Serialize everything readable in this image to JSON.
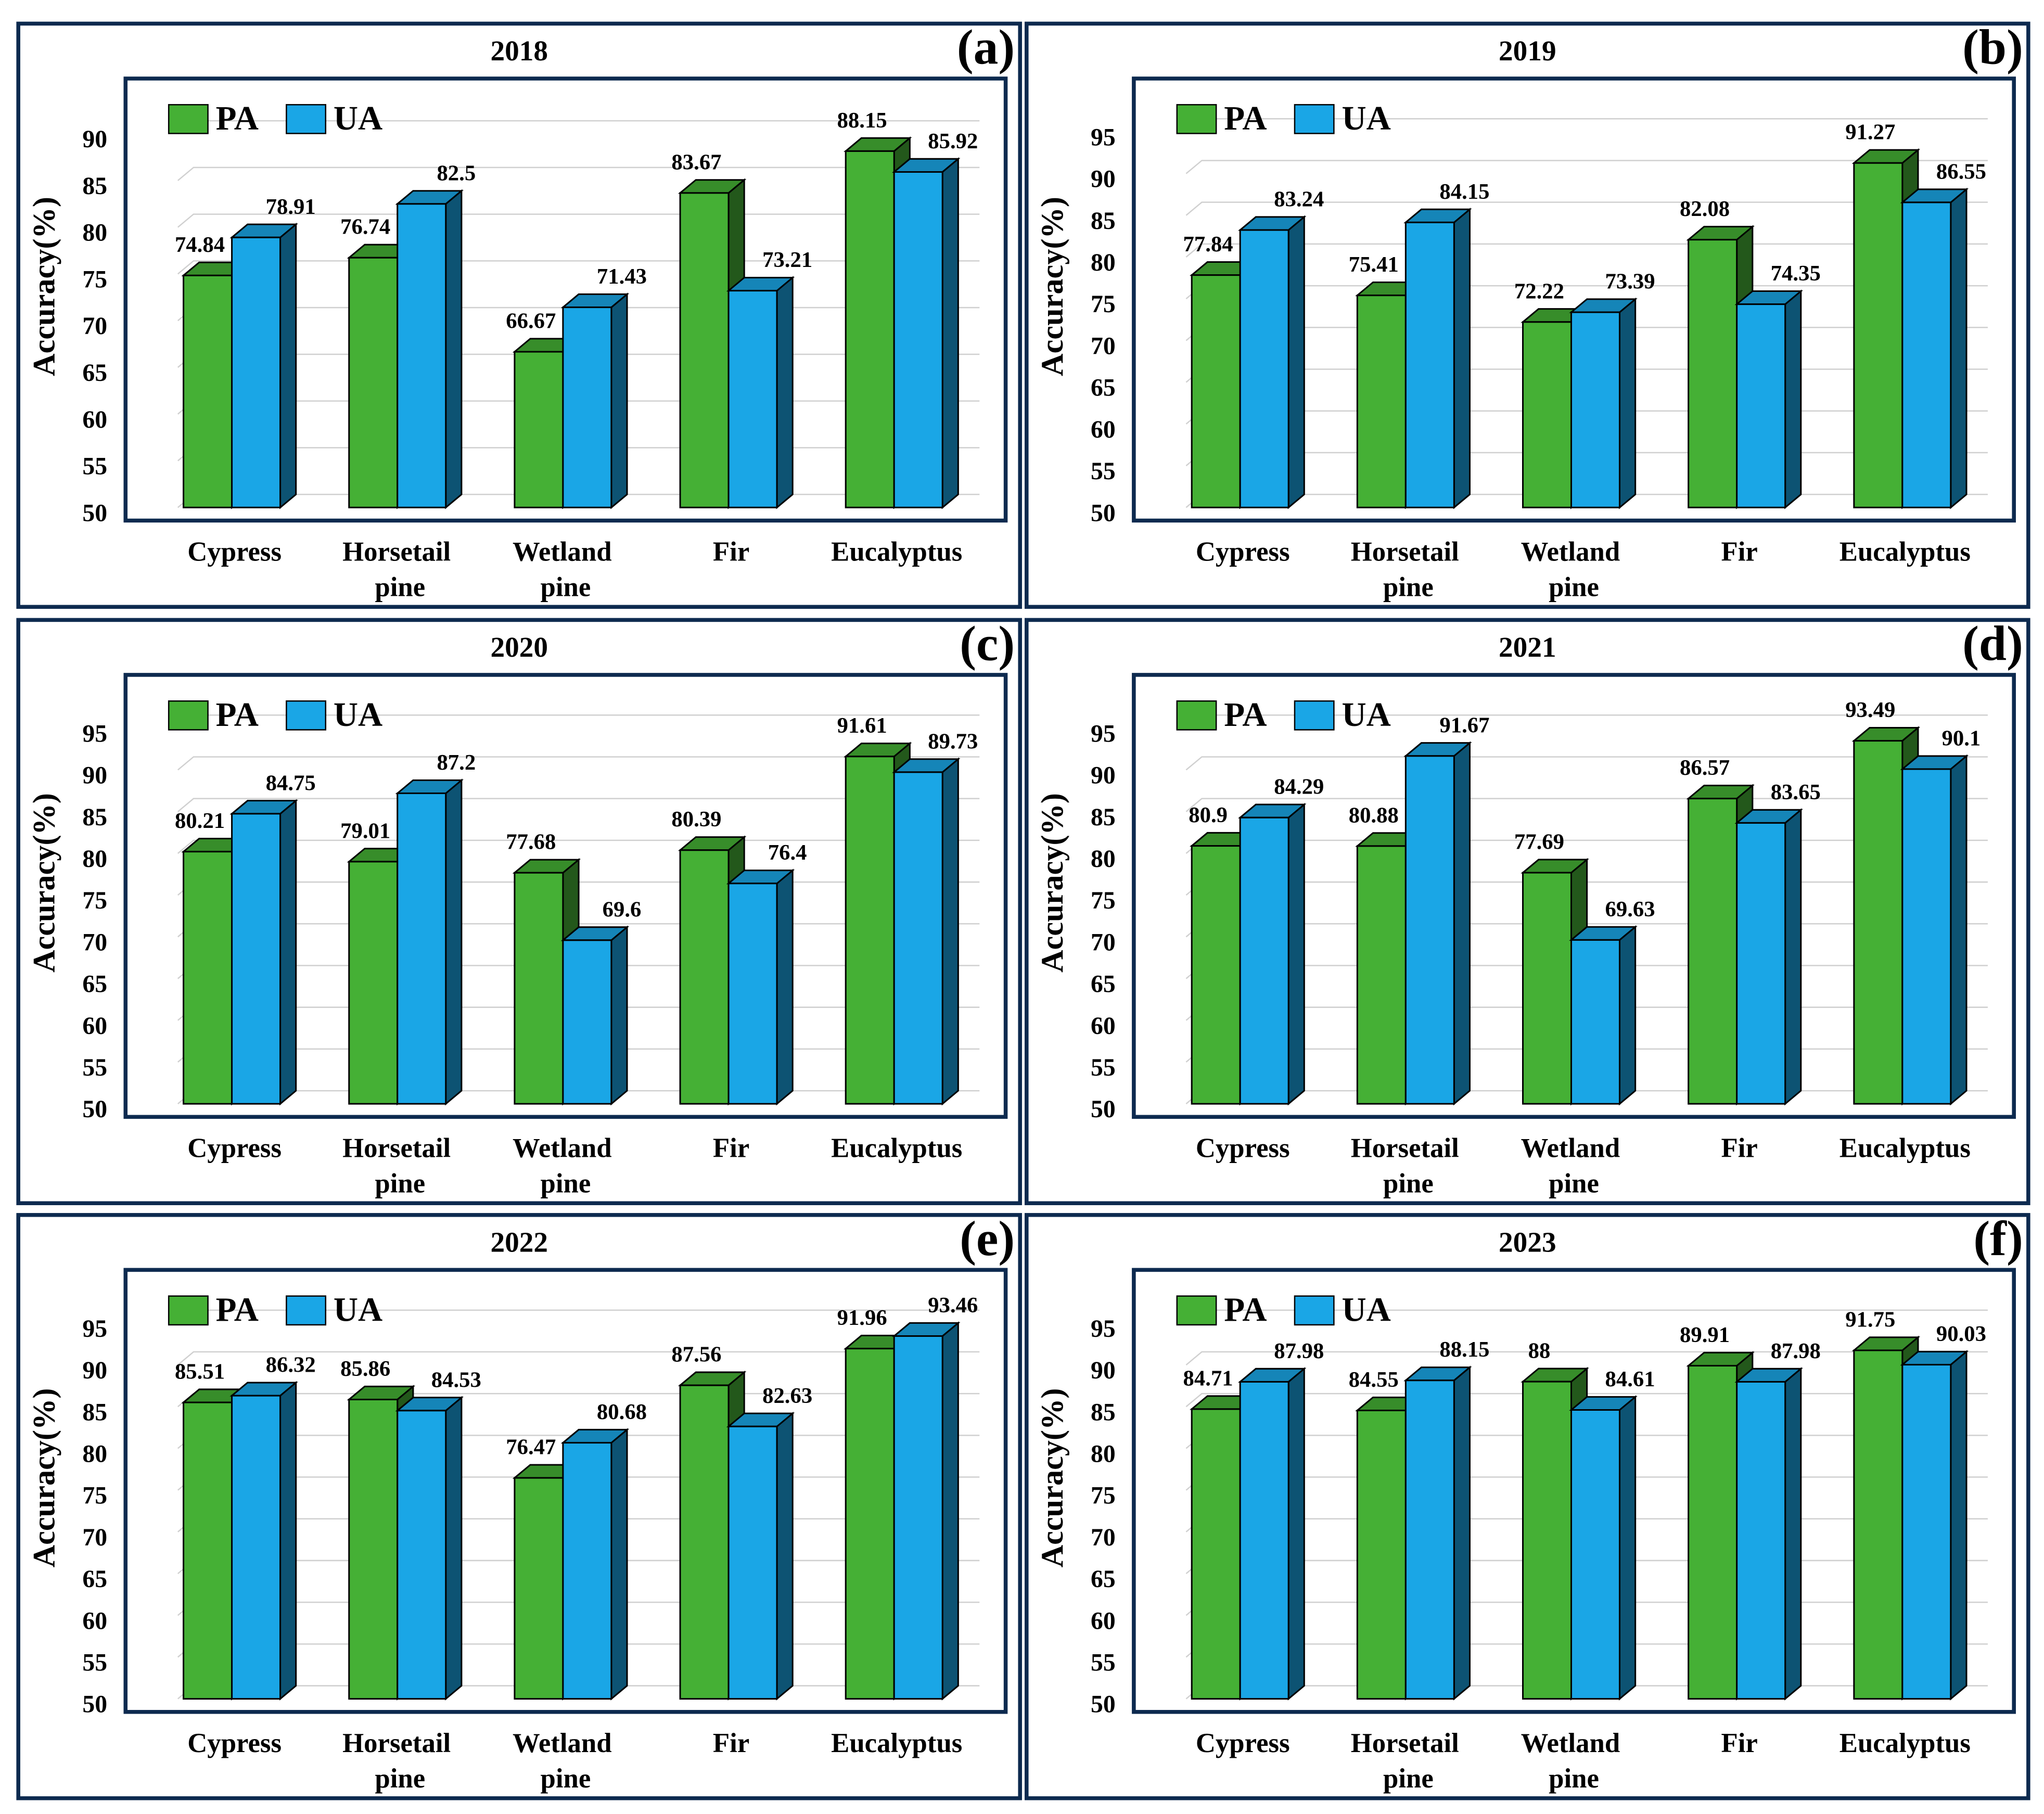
{
  "chart_data": [
    {
      "type": "bar",
      "title": "2018",
      "panel": "(a)",
      "y_label": "Accuracy(%)",
      "categories": [
        "Cypress",
        "Horsetail pine",
        "Wetland pine",
        "Fir",
        "Eucalyptus"
      ],
      "series": [
        {
          "name": "PA",
          "color": "#45b035",
          "values": [
            74.84,
            76.74,
            66.67,
            83.67,
            88.15
          ]
        },
        {
          "name": "UA",
          "color": "#1aa6e6",
          "values": [
            78.91,
            82.5,
            71.43,
            73.21,
            85.92
          ]
        }
      ],
      "ylim": [
        50,
        92
      ],
      "yticks": [
        50,
        55,
        60,
        65,
        70,
        75,
        80,
        85,
        90
      ],
      "grid": true,
      "legend": "upper left"
    },
    {
      "type": "bar",
      "title": "2019",
      "panel": "(b)",
      "y_label": "Accuracy(%)",
      "categories": [
        "Cypress",
        "Horsetail pine",
        "Wetland pine",
        "Fir",
        "Eucalyptus"
      ],
      "series": [
        {
          "name": "PA",
          "color": "#45b035",
          "values": [
            77.84,
            75.41,
            72.22,
            82.08,
            91.27
          ]
        },
        {
          "name": "UA",
          "color": "#1aa6e6",
          "values": [
            83.24,
            84.15,
            73.39,
            74.35,
            86.55
          ]
        }
      ],
      "ylim": [
        50,
        97
      ],
      "yticks": [
        50,
        55,
        60,
        65,
        70,
        75,
        80,
        85,
        90,
        95
      ],
      "grid": true,
      "legend": "upper left"
    },
    {
      "type": "bar",
      "title": "2020",
      "panel": "(c)",
      "y_label": "Accuracy(%)",
      "categories": [
        "Cypress",
        "Horsetail pine",
        "Wetland pine",
        "Fir",
        "Eucalyptus"
      ],
      "series": [
        {
          "name": "PA",
          "color": "#45b035",
          "values": [
            80.21,
            79.01,
            77.68,
            80.39,
            91.61
          ]
        },
        {
          "name": "UA",
          "color": "#1aa6e6",
          "values": [
            84.75,
            87.2,
            69.6,
            76.4,
            89.73
          ]
        }
      ],
      "ylim": [
        50,
        97
      ],
      "yticks": [
        50,
        55,
        60,
        65,
        70,
        75,
        80,
        85,
        90,
        95
      ],
      "grid": true,
      "legend": "upper left"
    },
    {
      "type": "bar",
      "title": "2021",
      "panel": "(d)",
      "y_label": "Accuracy(%)",
      "categories": [
        "Cypress",
        "Horsetail pine",
        "Wetland pine",
        "Fir",
        "Eucalyptus"
      ],
      "series": [
        {
          "name": "PA",
          "color": "#45b035",
          "values": [
            80.9,
            80.88,
            77.69,
            86.57,
            93.49
          ]
        },
        {
          "name": "UA",
          "color": "#1aa6e6",
          "values": [
            84.29,
            91.67,
            69.63,
            83.65,
            90.1
          ]
        }
      ],
      "ylim": [
        50,
        97
      ],
      "yticks": [
        50,
        55,
        60,
        65,
        70,
        75,
        80,
        85,
        90,
        95
      ],
      "grid": true,
      "legend": "upper left"
    },
    {
      "type": "bar",
      "title": "2022",
      "panel": "(e)",
      "y_label": "Accuracy(%)",
      "categories": [
        "Cypress",
        "Horsetail pine",
        "Wetland pine",
        "Fir",
        "Eucalyptus"
      ],
      "series": [
        {
          "name": "PA",
          "color": "#45b035",
          "values": [
            85.51,
            85.86,
            76.47,
            87.56,
            91.96
          ]
        },
        {
          "name": "UA",
          "color": "#1aa6e6",
          "values": [
            86.32,
            84.53,
            80.68,
            82.63,
            93.46
          ]
        }
      ],
      "ylim": [
        50,
        97
      ],
      "yticks": [
        50,
        55,
        60,
        65,
        70,
        75,
        80,
        85,
        90,
        95
      ],
      "grid": true,
      "legend": "upper left"
    },
    {
      "type": "bar",
      "title": "2023",
      "panel": "(f)",
      "y_label": "Accuracy(%)",
      "categories": [
        "Cypress",
        "Horsetail pine",
        "Wetland pine",
        "Fir",
        "Eucalyptus"
      ],
      "series": [
        {
          "name": "PA",
          "color": "#45b035",
          "values": [
            84.71,
            84.55,
            88,
            89.91,
            91.75
          ]
        },
        {
          "name": "UA",
          "color": "#1aa6e6",
          "values": [
            87.98,
            88.15,
            84.61,
            87.98,
            90.03
          ]
        }
      ],
      "ylim": [
        50,
        97
      ],
      "yticks": [
        50,
        55,
        60,
        65,
        70,
        75,
        80,
        85,
        90,
        95
      ],
      "grid": true,
      "legend": "upper left"
    }
  ]
}
